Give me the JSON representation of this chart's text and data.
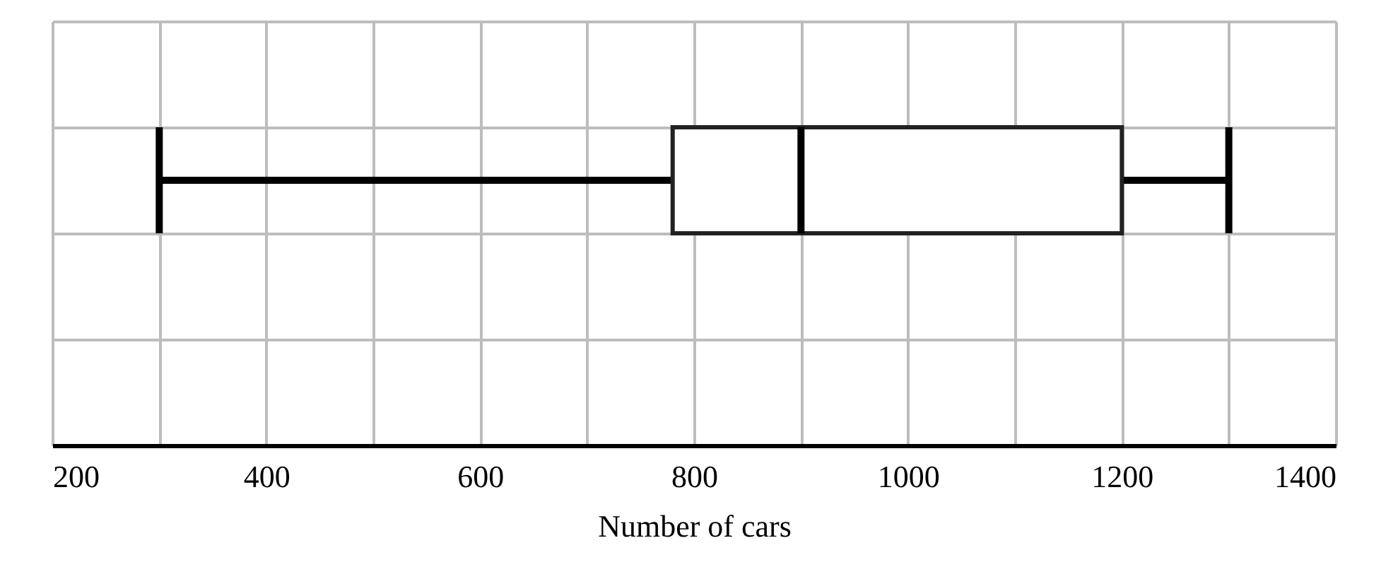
{
  "chart_data": {
    "type": "box",
    "orientation": "horizontal",
    "categories": [
      null
    ],
    "boxes": [
      {
        "low": 300,
        "q1": 780,
        "median": 900,
        "q3": 1200,
        "high": 1300
      }
    ],
    "xlabel": "Number of cars",
    "xlim": [
      200,
      1400
    ],
    "xticks": [
      200,
      {
        "value": 300,
        "label": null
      },
      400,
      {
        "value": 500,
        "label": null
      },
      600,
      {
        "value": 700,
        "label": null
      },
      800,
      {
        "value": 900,
        "label": null
      },
      1000,
      {
        "value": 1100,
        "label": null
      },
      1200,
      {
        "value": 1300,
        "label": null
      },
      1400
    ],
    "grid": true
  }
}
